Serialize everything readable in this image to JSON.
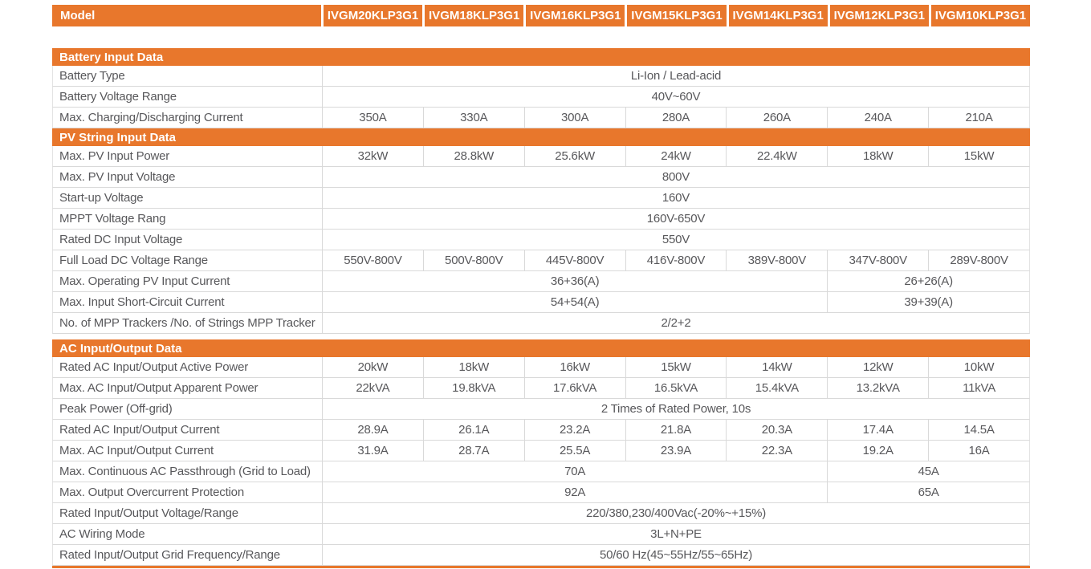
{
  "accent_color": "#e8772c",
  "header": {
    "label": "Model",
    "models": [
      "IVGM20KLP3G1",
      "IVGM18KLP3G1",
      "IVGM16KLP3G1",
      "IVGM15KLP3G1",
      "IVGM14KLP3G1",
      "IVGM12KLP3G1",
      "IVGM10KLP3G1"
    ]
  },
  "sections": [
    {
      "title": "Battery Input Data",
      "rows": [
        {
          "label": "Battery Type",
          "cells": [
            {
              "text": "Li-Ion / Lead-acid",
              "span": 7
            }
          ]
        },
        {
          "label": "Battery Voltage Range",
          "cells": [
            {
              "text": "40V~60V",
              "span": 7
            }
          ]
        },
        {
          "label": "Max. Charging/Discharging Current",
          "cells": [
            {
              "text": "350A",
              "span": 1
            },
            {
              "text": "330A",
              "span": 1
            },
            {
              "text": "300A",
              "span": 1
            },
            {
              "text": "280A",
              "span": 1
            },
            {
              "text": "260A",
              "span": 1
            },
            {
              "text": "240A",
              "span": 1
            },
            {
              "text": "210A",
              "span": 1
            }
          ]
        }
      ]
    },
    {
      "title": "PV String Input Data",
      "rows": [
        {
          "label": "Max. PV Input Power",
          "cells": [
            {
              "text": "32kW",
              "span": 1
            },
            {
              "text": "28.8kW",
              "span": 1
            },
            {
              "text": "25.6kW",
              "span": 1
            },
            {
              "text": "24kW",
              "span": 1
            },
            {
              "text": "22.4kW",
              "span": 1
            },
            {
              "text": "18kW",
              "span": 1
            },
            {
              "text": "15kW",
              "span": 1
            }
          ]
        },
        {
          "label": "Max. PV Input Voltage",
          "cells": [
            {
              "text": "800V",
              "span": 7
            }
          ]
        },
        {
          "label": "Start-up Voltage",
          "cells": [
            {
              "text": "160V",
              "span": 7
            }
          ]
        },
        {
          "label": "MPPT Voltage Rang",
          "cells": [
            {
              "text": "160V-650V",
              "span": 7
            }
          ]
        },
        {
          "label": "Rated DC Input Voltage",
          "cells": [
            {
              "text": "550V",
              "span": 7
            }
          ]
        },
        {
          "label": "Full Load DC Voltage Range",
          "cells": [
            {
              "text": "550V-800V",
              "span": 1
            },
            {
              "text": "500V-800V",
              "span": 1
            },
            {
              "text": "445V-800V",
              "span": 1
            },
            {
              "text": "416V-800V",
              "span": 1
            },
            {
              "text": "389V-800V",
              "span": 1
            },
            {
              "text": "347V-800V",
              "span": 1
            },
            {
              "text": "289V-800V",
              "span": 1
            }
          ]
        },
        {
          "label": "Max. Operating PV Input Current",
          "cells": [
            {
              "text": "36+36(A)",
              "span": 5
            },
            {
              "text": "26+26(A)",
              "span": 2
            }
          ]
        },
        {
          "label": "Max. Input Short-Circuit Current",
          "cells": [
            {
              "text": "54+54(A)",
              "span": 5
            },
            {
              "text": "39+39(A)",
              "span": 2
            }
          ]
        },
        {
          "label": "No. of MPP Trackers /No. of Strings MPP Tracker",
          "cells": [
            {
              "text": "2/2+2",
              "span": 7
            }
          ]
        }
      ]
    },
    {
      "title": "AC Input/Output Data",
      "rows": [
        {
          "label": "Rated AC Input/Output Active Power",
          "cells": [
            {
              "text": "20kW",
              "span": 1
            },
            {
              "text": "18kW",
              "span": 1
            },
            {
              "text": "16kW",
              "span": 1
            },
            {
              "text": "15kW",
              "span": 1
            },
            {
              "text": "14kW",
              "span": 1
            },
            {
              "text": "12kW",
              "span": 1
            },
            {
              "text": "10kW",
              "span": 1
            }
          ]
        },
        {
          "label": "Max. AC Input/Output Apparent Power",
          "cells": [
            {
              "text": "22kVA",
              "span": 1
            },
            {
              "text": "19.8kVA",
              "span": 1
            },
            {
              "text": "17.6kVA",
              "span": 1
            },
            {
              "text": "16.5kVA",
              "span": 1
            },
            {
              "text": "15.4kVA",
              "span": 1
            },
            {
              "text": "13.2kVA",
              "span": 1
            },
            {
              "text": "11kVA",
              "span": 1
            }
          ]
        },
        {
          "label": "Peak Power (Off-grid)",
          "cells": [
            {
              "text": "2 Times of Rated Power, 10s",
              "span": 7
            }
          ]
        },
        {
          "label": "Rated AC Input/Output Current",
          "cells": [
            {
              "text": "28.9A",
              "span": 1
            },
            {
              "text": "26.1A",
              "span": 1
            },
            {
              "text": "23.2A",
              "span": 1
            },
            {
              "text": "21.8A",
              "span": 1
            },
            {
              "text": "20.3A",
              "span": 1
            },
            {
              "text": "17.4A",
              "span": 1
            },
            {
              "text": "14.5A",
              "span": 1
            }
          ]
        },
        {
          "label": "Max. AC Input/Output Current",
          "cells": [
            {
              "text": "31.9A",
              "span": 1
            },
            {
              "text": "28.7A",
              "span": 1
            },
            {
              "text": "25.5A",
              "span": 1
            },
            {
              "text": "23.9A",
              "span": 1
            },
            {
              "text": "22.3A",
              "span": 1
            },
            {
              "text": "19.2A",
              "span": 1
            },
            {
              "text": "16A",
              "span": 1
            }
          ]
        },
        {
          "label": "Max. Continuous AC Passthrough (Grid to Load)",
          "cells": [
            {
              "text": "70A",
              "span": 5
            },
            {
              "text": "45A",
              "span": 2
            }
          ]
        },
        {
          "label": "Max. Output Overcurrent Protection",
          "cells": [
            {
              "text": "92A",
              "span": 5
            },
            {
              "text": "65A",
              "span": 2
            }
          ]
        },
        {
          "label": "Rated Input/Output Voltage/Range",
          "cells": [
            {
              "text": "220/380,230/400Vac(-20%~+15%)",
              "span": 7
            }
          ]
        },
        {
          "label": "AC Wiring Mode",
          "cells": [
            {
              "text": "3L+N+PE",
              "span": 7
            }
          ]
        },
        {
          "label": "Rated Input/Output Grid Frequency/Range",
          "cells": [
            {
              "text": "50/60 Hz(45~55Hz/55~65Hz)",
              "span": 7
            }
          ]
        }
      ]
    }
  ]
}
